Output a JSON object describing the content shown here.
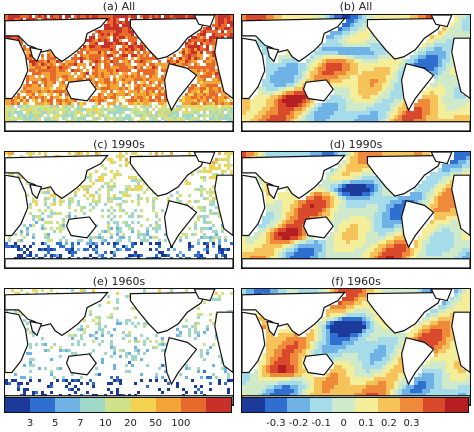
{
  "panels": [
    {
      "label": "(a) All",
      "kind": "count",
      "density": 0.85
    },
    {
      "label": "(b) All",
      "kind": "anomaly"
    },
    {
      "label": "(c) 1990s",
      "kind": "count",
      "density": 0.35
    },
    {
      "label": "(d) 1990s",
      "kind": "anomaly"
    },
    {
      "label": "(e) 1960s",
      "kind": "count",
      "density": 0.22
    },
    {
      "label": "(f) 1960s",
      "kind": "anomaly"
    }
  ],
  "colorbars": {
    "left": {
      "ticks": [
        "3",
        "5",
        "7",
        "10",
        "20",
        "50",
        "100"
      ],
      "colors": [
        "#1b3a9a",
        "#2f6fd0",
        "#6fb2e6",
        "#9fd8c6",
        "#cfe28a",
        "#f2d24e",
        "#f4a336",
        "#e8692c",
        "#c8302a"
      ]
    },
    "right": {
      "ticks": [
        "-0.3",
        "-0.2",
        "-0.1",
        "0",
        "0.1",
        "0.2",
        "0.3"
      ],
      "colors": [
        "#1b3a9a",
        "#2f6fd0",
        "#6fb2e6",
        "#a6dcea",
        "#cfeacb",
        "#f4ee9a",
        "#f5c35a",
        "#ee8a3a",
        "#d9492b",
        "#b51f22"
      ]
    }
  }
}
